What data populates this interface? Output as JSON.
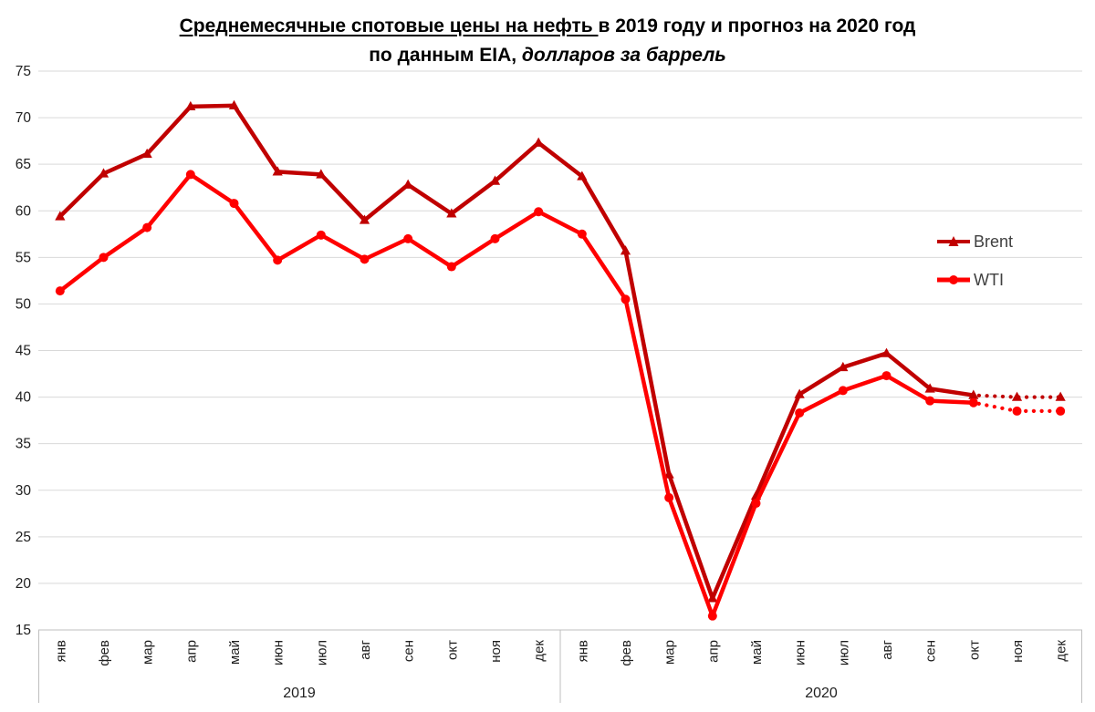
{
  "title": {
    "line1_underlined": "Среднемесячные спотовые цены на нефть ",
    "line1_rest": "в 2019 году и прогноз на 2020 год",
    "line2_bold": "по данным EIA,",
    "line2_italic": " долларов за баррель"
  },
  "legend": {
    "position": "right",
    "items": [
      {
        "label": "Brent",
        "color": "#C00000",
        "marker": "triangle"
      },
      {
        "label": "WTI",
        "color": "#FF0000",
        "marker": "circle"
      }
    ]
  },
  "chart_data": {
    "type": "line",
    "ylim": [
      15,
      75
    ],
    "y_tick_step": 5,
    "grid": "horizontal",
    "gridline_color": "#D9D9D9",
    "axis_color": "#BFBFBF",
    "label_color": "#1f1f1f",
    "x_groups": [
      {
        "year": "2019",
        "months": [
          "янв",
          "фев",
          "мар",
          "апр",
          "май",
          "июн",
          "июл",
          "авг",
          "сен",
          "окт",
          "ноя",
          "дек"
        ]
      },
      {
        "year": "2020",
        "months": [
          "янв",
          "фев",
          "мар",
          "апр",
          "май",
          "июн",
          "июл",
          "авг",
          "сен",
          "окт",
          "ноя",
          "дек"
        ]
      }
    ],
    "forecast_note": "last two points (ноя, дек 2020) are dotted forecast",
    "series": [
      {
        "name": "Brent",
        "color": "#C00000",
        "marker": "triangle",
        "forecast_from_index": 21,
        "values": [
          59.4,
          64.0,
          66.1,
          71.2,
          71.3,
          64.2,
          63.9,
          59.0,
          62.8,
          59.7,
          63.2,
          67.3,
          63.7,
          55.7,
          31.7,
          18.4,
          29.4,
          40.3,
          43.2,
          44.7,
          40.9,
          40.2,
          40.0,
          40.0
        ]
      },
      {
        "name": "WTI",
        "color": "#FF0000",
        "marker": "circle",
        "forecast_from_index": 21,
        "values": [
          51.4,
          55.0,
          58.2,
          63.9,
          60.8,
          54.7,
          57.4,
          54.8,
          57.0,
          54.0,
          57.0,
          59.9,
          57.5,
          50.5,
          29.2,
          16.5,
          28.6,
          38.3,
          40.7,
          42.3,
          39.6,
          39.4,
          38.5,
          38.5
        ]
      }
    ]
  }
}
